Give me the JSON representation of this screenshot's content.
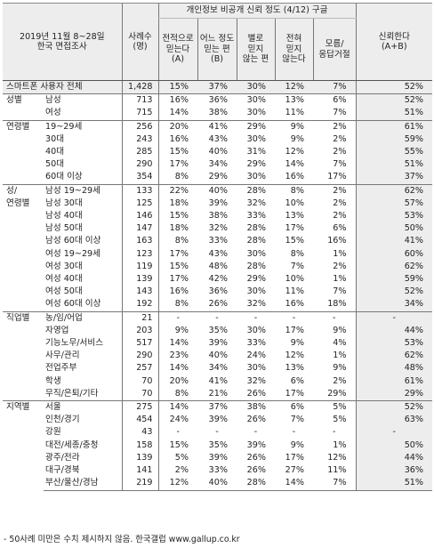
{
  "header": {
    "survey_line1": "2019년 11월 8~28일",
    "survey_line2": "한국 면접조사",
    "n_label": "사례수\n(명)",
    "group_title": "개인정보 비공개 신뢰 정도 (4/12) 구글",
    "cols": [
      "전적으로\n믿는다\n(A)",
      "어느 정도\n믿는 편\n(B)",
      "별로\n믿지\n않는 편",
      "전혀\n믿지\n않는다",
      "모름/\n응답거절"
    ],
    "trust_label": "신뢰한다\n(A+B)"
  },
  "total": {
    "label": "스마트폰 사용자 전체",
    "n": "1,428",
    "v": [
      "15%",
      "37%",
      "30%",
      "12%",
      "7%",
      "52%"
    ]
  },
  "groups": [
    {
      "cat": "성별",
      "rows": [
        {
          "sub": "남성",
          "n": "713",
          "v": [
            "16%",
            "36%",
            "30%",
            "13%",
            "6%",
            "52%"
          ]
        },
        {
          "sub": "여성",
          "n": "715",
          "v": [
            "14%",
            "38%",
            "30%",
            "11%",
            "7%",
            "51%"
          ]
        }
      ]
    },
    {
      "cat": "연령별",
      "rows": [
        {
          "sub": "19~29세",
          "n": "256",
          "v": [
            "20%",
            "41%",
            "29%",
            "9%",
            "2%",
            "61%"
          ]
        },
        {
          "sub": "30대",
          "n": "243",
          "v": [
            "16%",
            "43%",
            "30%",
            "9%",
            "2%",
            "59%"
          ]
        },
        {
          "sub": "40대",
          "n": "285",
          "v": [
            "15%",
            "40%",
            "31%",
            "12%",
            "2%",
            "55%"
          ]
        },
        {
          "sub": "50대",
          "n": "290",
          "v": [
            "17%",
            "34%",
            "29%",
            "14%",
            "7%",
            "51%"
          ]
        },
        {
          "sub": "60대 이상",
          "n": "354",
          "v": [
            "8%",
            "29%",
            "30%",
            "16%",
            "17%",
            "37%"
          ]
        }
      ]
    },
    {
      "cat": "성/\n연령별",
      "rows": [
        {
          "sub": "남성 19~29세",
          "n": "133",
          "v": [
            "22%",
            "40%",
            "28%",
            "8%",
            "2%",
            "62%"
          ]
        },
        {
          "sub": "남성 30대",
          "n": "125",
          "v": [
            "18%",
            "39%",
            "32%",
            "10%",
            "2%",
            "57%"
          ]
        },
        {
          "sub": "남성 40대",
          "n": "146",
          "v": [
            "15%",
            "38%",
            "33%",
            "13%",
            "2%",
            "53%"
          ]
        },
        {
          "sub": "남성 50대",
          "n": "147",
          "v": [
            "18%",
            "32%",
            "28%",
            "17%",
            "6%",
            "50%"
          ]
        },
        {
          "sub": "남성 60대 이상",
          "n": "163",
          "v": [
            "8%",
            "33%",
            "28%",
            "15%",
            "16%",
            "41%"
          ]
        },
        {
          "sub": "여성 19~29세",
          "n": "123",
          "v": [
            "17%",
            "43%",
            "30%",
            "8%",
            "1%",
            "60%"
          ]
        },
        {
          "sub": "여성 30대",
          "n": "119",
          "v": [
            "15%",
            "48%",
            "28%",
            "7%",
            "2%",
            "62%"
          ]
        },
        {
          "sub": "여성 40대",
          "n": "139",
          "v": [
            "17%",
            "42%",
            "29%",
            "10%",
            "1%",
            "59%"
          ]
        },
        {
          "sub": "여성 50대",
          "n": "143",
          "v": [
            "16%",
            "36%",
            "30%",
            "11%",
            "7%",
            "52%"
          ]
        },
        {
          "sub": "여성 60대 이상",
          "n": "192",
          "v": [
            "8%",
            "26%",
            "32%",
            "16%",
            "18%",
            "34%"
          ]
        }
      ]
    },
    {
      "cat": "직업별",
      "rows": [
        {
          "sub": "농/임/어업",
          "n": "21",
          "v": [
            "-",
            "-",
            "-",
            "-",
            "-",
            "-"
          ]
        },
        {
          "sub": "자영업",
          "n": "203",
          "v": [
            "9%",
            "35%",
            "30%",
            "17%",
            "9%",
            "44%"
          ]
        },
        {
          "sub": "기능노무/서비스",
          "n": "517",
          "v": [
            "14%",
            "39%",
            "33%",
            "9%",
            "4%",
            "53%"
          ]
        },
        {
          "sub": "사무/관리",
          "n": "290",
          "v": [
            "23%",
            "40%",
            "24%",
            "12%",
            "1%",
            "62%"
          ]
        },
        {
          "sub": "전업주부",
          "n": "257",
          "v": [
            "14%",
            "34%",
            "30%",
            "13%",
            "9%",
            "48%"
          ]
        },
        {
          "sub": "학생",
          "n": "70",
          "v": [
            "20%",
            "41%",
            "32%",
            "6%",
            "2%",
            "61%"
          ]
        },
        {
          "sub": "무직/은퇴/기타",
          "n": "70",
          "v": [
            "8%",
            "21%",
            "26%",
            "17%",
            "29%",
            "29%"
          ]
        }
      ]
    },
    {
      "cat": "지역별",
      "rows": [
        {
          "sub": "서울",
          "n": "275",
          "v": [
            "14%",
            "37%",
            "38%",
            "6%",
            "5%",
            "52%"
          ]
        },
        {
          "sub": "인천/경기",
          "n": "454",
          "v": [
            "24%",
            "39%",
            "26%",
            "7%",
            "5%",
            "63%"
          ]
        },
        {
          "sub": "강원",
          "n": "43",
          "v": [
            "-",
            "-",
            "-",
            "-",
            "-",
            "-"
          ]
        },
        {
          "sub": "대전/세종/충청",
          "n": "158",
          "v": [
            "15%",
            "35%",
            "39%",
            "9%",
            "1%",
            "50%"
          ]
        },
        {
          "sub": "광주/전라",
          "n": "139",
          "v": [
            "5%",
            "39%",
            "26%",
            "17%",
            "12%",
            "44%"
          ]
        },
        {
          "sub": "대구/경북",
          "n": "141",
          "v": [
            "2%",
            "33%",
            "26%",
            "27%",
            "11%",
            "36%"
          ]
        },
        {
          "sub": "부산/울산/경남",
          "n": "219",
          "v": [
            "12%",
            "40%",
            "28%",
            "14%",
            "7%",
            "51%"
          ]
        }
      ]
    }
  ],
  "footnote": "- 50사례 미만은 수치 제시하지 않음. 한국갤럽 www.gallup.co.kr"
}
